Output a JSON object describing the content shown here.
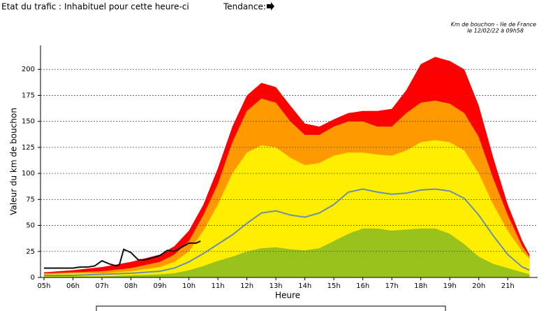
{
  "header": {
    "status": "Etat du trafic : Inhabituel pour cette heure-ci",
    "trend": "Tendance:"
  },
  "chart_data": {
    "type": "area",
    "title": "Km de bouchon - Ile de France",
    "subtitle": "le 12/02/22 à 09h58",
    "ylabel": "Valeur du  km de bouchon",
    "xlabel": "Heure",
    "xlim": [
      4.88,
      22.03
    ],
    "ylim": [
      0,
      223
    ],
    "grid": true,
    "yticks": [
      0,
      25,
      50,
      75,
      100,
      125,
      150,
      175,
      200
    ],
    "xticks": [
      {
        "value": 5,
        "label": "05h"
      },
      {
        "value": 6,
        "label": "06h"
      },
      {
        "value": 7,
        "label": "07h"
      },
      {
        "value": 8,
        "label": "08h"
      },
      {
        "value": 9,
        "label": "09h"
      },
      {
        "value": 10,
        "label": "10h"
      },
      {
        "value": 11,
        "label": "11h"
      },
      {
        "value": 12,
        "label": "12h"
      },
      {
        "value": 13,
        "label": "13h"
      },
      {
        "value": 14,
        "label": "14h"
      },
      {
        "value": 15,
        "label": "15h"
      },
      {
        "value": 16,
        "label": "16h"
      },
      {
        "value": 17,
        "label": "17h"
      },
      {
        "value": 18,
        "label": "18h"
      },
      {
        "value": 19,
        "label": "19h"
      },
      {
        "value": 20,
        "label": "20h"
      },
      {
        "value": 21,
        "label": "21h"
      }
    ],
    "x": [
      5,
      6,
      7,
      8,
      9,
      9.5,
      10,
      10.5,
      11,
      11.5,
      12,
      12.5,
      13,
      13.5,
      14,
      14.5,
      15,
      15.5,
      16,
      16.5,
      17,
      17.5,
      18,
      18.5,
      19,
      19.5,
      20,
      20.5,
      21,
      21.5,
      21.75
    ],
    "series": [
      {
        "style": "area",
        "color": "#ff0000",
        "values": [
          5,
          7,
          10,
          15,
          22,
          30,
          45,
          70,
          105,
          145,
          175,
          187,
          183,
          165,
          148,
          145,
          152,
          158,
          160,
          160,
          162,
          180,
          205,
          212,
          208,
          200,
          165,
          115,
          70,
          35,
          22
        ]
      },
      {
        "style": "area",
        "color": "#ff9900",
        "values": [
          4,
          5,
          6,
          9,
          15,
          22,
          35,
          60,
          90,
          130,
          160,
          172,
          168,
          150,
          137,
          137,
          145,
          150,
          150,
          145,
          145,
          158,
          168,
          170,
          167,
          158,
          135,
          95,
          60,
          30,
          20
        ]
      },
      {
        "style": "area",
        "color": "#ffee00",
        "values": [
          3,
          4,
          4,
          6,
          10,
          15,
          25,
          45,
          70,
          100,
          120,
          127,
          125,
          115,
          108,
          110,
          117,
          120,
          120,
          118,
          117,
          122,
          130,
          132,
          130,
          122,
          100,
          70,
          45,
          25,
          18
        ]
      },
      {
        "style": "area",
        "color": "#99c31c",
        "values": [
          1,
          1,
          1,
          2,
          3,
          4,
          7,
          11,
          16,
          20,
          25,
          28,
          29,
          27,
          26,
          28,
          35,
          42,
          47,
          47,
          45,
          46,
          47,
          47,
          42,
          32,
          20,
          13,
          9,
          5,
          3
        ]
      },
      {
        "style": "line",
        "color": "#6b8fa8",
        "values": [
          2,
          2,
          3,
          4,
          6,
          9,
          15,
          23,
          32,
          41,
          52,
          62,
          64,
          60,
          58,
          62,
          70,
          82,
          85,
          82,
          80,
          81,
          84,
          85,
          83,
          76,
          60,
          40,
          22,
          10,
          7
        ]
      },
      {
        "style": "line",
        "color": "#111111",
        "x": [
          5,
          5.5,
          5.75,
          6,
          6.25,
          6.5,
          6.75,
          7,
          7.25,
          7.5,
          7.6,
          7.75,
          8,
          8.25,
          8.5,
          8.75,
          9,
          9.25,
          9.5,
          9.75,
          10,
          10.25,
          10.4
        ],
        "values": [
          9,
          9,
          9,
          9,
          10,
          10,
          11,
          16,
          13,
          11,
          12,
          27,
          24,
          17,
          17,
          19,
          21,
          26,
          25,
          29,
          33,
          33,
          35
        ]
      }
    ]
  }
}
